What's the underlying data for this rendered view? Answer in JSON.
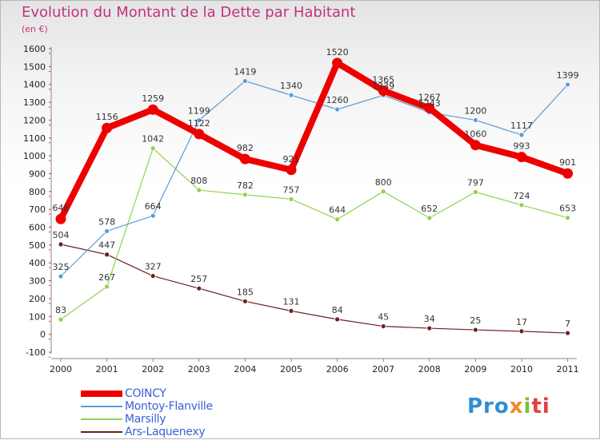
{
  "title": "Evolution du Montant de la Dette par Habitant",
  "subtitle": "(en €)",
  "logo": {
    "part1": "Pro",
    "part2": "x",
    "part3": "i",
    "part4": "ti"
  },
  "chart_data": {
    "type": "line",
    "title": "Evolution du Montant de la Dette par Habitant",
    "subtitle": "(en €)",
    "x": [
      "2000",
      "2001",
      "2002",
      "2003",
      "2004",
      "2005",
      "2006",
      "2007",
      "2008",
      "2009",
      "2010",
      "2011"
    ],
    "ylim": [
      -100,
      1600
    ],
    "yticks": [
      -100,
      0,
      100,
      200,
      300,
      400,
      500,
      600,
      700,
      800,
      900,
      1000,
      1100,
      1200,
      1300,
      1400,
      1500,
      1600
    ],
    "grid": false,
    "legend_position": "bottom-left",
    "series": [
      {
        "name": "COINCY",
        "color": "#ee0000",
        "legend_color": "#3a5fd6",
        "values": [
          646,
          1156,
          1259,
          1122,
          982,
          921,
          1520,
          1365,
          1267,
          1060,
          993,
          901
        ]
      },
      {
        "name": "Montoy-Flanville",
        "color": "#5b9bd5",
        "legend_color": "#3a5fd6",
        "values": [
          325,
          578,
          664,
          1199,
          1419,
          1340,
          1260,
          1339,
          1243,
          1200,
          1117,
          1399
        ]
      },
      {
        "name": "Marsilly",
        "color": "#8fd14f",
        "legend_color": "#3a5fd6",
        "values": [
          83,
          267,
          1042,
          808,
          782,
          757,
          644,
          800,
          652,
          797,
          724,
          653
        ]
      },
      {
        "name": "Ars-Laquenexy",
        "color": "#6b2020",
        "legend_color": "#3a5fd6",
        "values": [
          504,
          447,
          327,
          257,
          185,
          131,
          84,
          45,
          34,
          25,
          17,
          7
        ]
      }
    ]
  }
}
